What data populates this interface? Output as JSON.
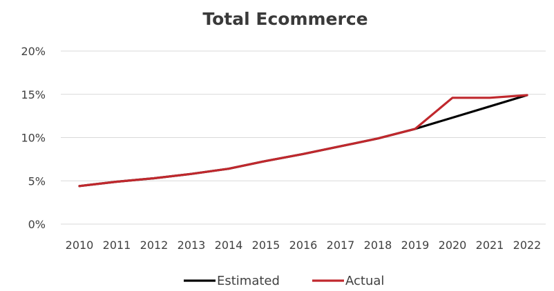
{
  "chart_data": {
    "type": "line",
    "title": "Total Ecommerce",
    "xlabel": "",
    "ylabel": "",
    "categories": [
      "2010",
      "2011",
      "2012",
      "2013",
      "2014",
      "2015",
      "2016",
      "2017",
      "2018",
      "2019",
      "2020",
      "2021",
      "2022"
    ],
    "yticks": [
      "0%",
      "5%",
      "10%",
      "15%",
      "20%"
    ],
    "ylim": [
      0,
      20
    ],
    "grid": true,
    "legend_position": "bottom",
    "series": [
      {
        "name": "Estimated",
        "color": "#000000",
        "values": [
          4.4,
          4.9,
          5.3,
          5.8,
          6.4,
          7.3,
          8.1,
          9.0,
          9.9,
          11.0,
          12.3,
          13.6,
          14.9
        ]
      },
      {
        "name": "Actual",
        "color": "#c0282d",
        "values": [
          4.4,
          4.9,
          5.3,
          5.8,
          6.4,
          7.3,
          8.1,
          9.0,
          9.9,
          11.0,
          14.6,
          14.6,
          14.9
        ]
      }
    ]
  }
}
